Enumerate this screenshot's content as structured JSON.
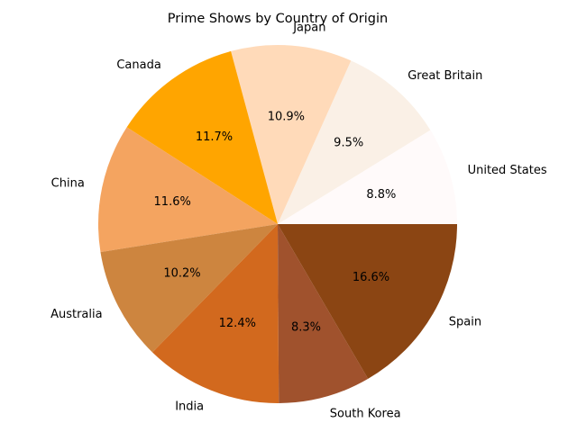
{
  "chart_data": {
    "type": "pie",
    "title": "Prime Shows by Country of Origin",
    "start_angle_deg": 0,
    "direction": "counterclockwise",
    "slices": [
      {
        "label": "United States",
        "value": 8.8,
        "pct_label": "8.8%",
        "color": "#fffafa"
      },
      {
        "label": "Great Britain",
        "value": 9.5,
        "pct_label": "9.5%",
        "color": "#faf0e6"
      },
      {
        "label": "Japan",
        "value": 10.9,
        "pct_label": "10.9%",
        "color": "#ffdab9"
      },
      {
        "label": "Canada",
        "value": 11.7,
        "pct_label": "11.7%",
        "color": "#ffa500"
      },
      {
        "label": "China",
        "value": 11.6,
        "pct_label": "11.6%",
        "color": "#f4a460"
      },
      {
        "label": "Australia",
        "value": 10.2,
        "pct_label": "10.2%",
        "color": "#cd853f"
      },
      {
        "label": "India",
        "value": 12.4,
        "pct_label": "12.4%",
        "color": "#d2691e"
      },
      {
        "label": "South Korea",
        "value": 8.3,
        "pct_label": "8.3%",
        "color": "#a0522d"
      },
      {
        "label": "Spain",
        "value": 16.6,
        "pct_label": "16.6%",
        "color": "#8b4513"
      }
    ]
  }
}
